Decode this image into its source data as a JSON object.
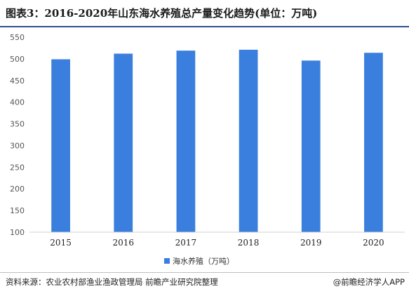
{
  "header": {
    "title": "图表3：2016-2020年山东海水养殖总产量变化趋势(单位：万吨)"
  },
  "footer": {
    "source": "资料来源：农业农村部渔业渔政管理局 前瞻产业研究院整理",
    "brand": "@前瞻经济学人APP"
  },
  "chart_data": {
    "type": "bar",
    "categories": [
      "2015",
      "2016",
      "2017",
      "2018",
      "2019",
      "2020"
    ],
    "series": [
      {
        "name": "海水养殖（万吨）",
        "values": [
          499,
          512,
          519,
          521,
          496,
          514
        ]
      }
    ],
    "ylim": [
      100,
      550
    ],
    "yticks": [
      100,
      150,
      200,
      250,
      300,
      350,
      400,
      450,
      500,
      550
    ],
    "grid": false,
    "legend": "bottom-center",
    "colors": {
      "bar": "#3a7fde",
      "axis": "#d0d0d0"
    }
  }
}
